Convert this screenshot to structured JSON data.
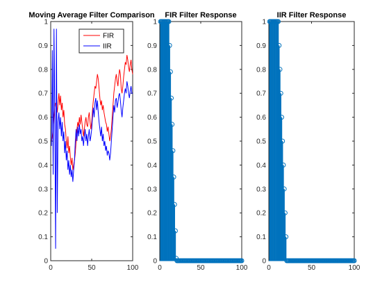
{
  "chart_data": [
    {
      "type": "line",
      "title": "Moving Average Filter Comparison",
      "xlabel": "",
      "ylabel": "",
      "xlim": [
        0,
        100
      ],
      "ylim": [
        0,
        1
      ],
      "xticks": [
        0,
        50,
        100
      ],
      "yticks": [
        0,
        0.1,
        0.2,
        0.3,
        0.4,
        0.5,
        0.6,
        0.7,
        0.8,
        0.9,
        1
      ],
      "grid": false,
      "legend_position": "top-right",
      "series": [
        {
          "name": "FIR",
          "color": "#ff0000",
          "points": [
            [
              1,
              0.5
            ],
            [
              2,
              0.52
            ],
            [
              3,
              0.55
            ],
            [
              4,
              0.6
            ],
            [
              5,
              0.64
            ],
            [
              6,
              0.66
            ],
            [
              7,
              0.65
            ],
            [
              8,
              0.62
            ],
            [
              9,
              0.66
            ],
            [
              10,
              0.7
            ],
            [
              11,
              0.65
            ],
            [
              12,
              0.69
            ],
            [
              13,
              0.63
            ],
            [
              14,
              0.66
            ],
            [
              15,
              0.6
            ],
            [
              16,
              0.63
            ],
            [
              17,
              0.57
            ],
            [
              18,
              0.55
            ],
            [
              19,
              0.5
            ],
            [
              20,
              0.47
            ],
            [
              21,
              0.52
            ],
            [
              22,
              0.45
            ],
            [
              23,
              0.48
            ],
            [
              24,
              0.43
            ],
            [
              25,
              0.4
            ],
            [
              26,
              0.43
            ],
            [
              27,
              0.38
            ],
            [
              28,
              0.4
            ],
            [
              29,
              0.42
            ],
            [
              30,
              0.45
            ],
            [
              31,
              0.5
            ],
            [
              32,
              0.55
            ],
            [
              33,
              0.58
            ],
            [
              34,
              0.56
            ],
            [
              35,
              0.6
            ],
            [
              36,
              0.57
            ],
            [
              37,
              0.61
            ],
            [
              38,
              0.58
            ],
            [
              39,
              0.55
            ],
            [
              40,
              0.52
            ],
            [
              41,
              0.55
            ],
            [
              42,
              0.58
            ],
            [
              43,
              0.6
            ],
            [
              44,
              0.57
            ],
            [
              45,
              0.56
            ],
            [
              46,
              0.6
            ],
            [
              47,
              0.62
            ],
            [
              48,
              0.58
            ],
            [
              49,
              0.55
            ],
            [
              50,
              0.58
            ],
            [
              51,
              0.63
            ],
            [
              52,
              0.67
            ],
            [
              53,
              0.7
            ],
            [
              54,
              0.73
            ],
            [
              55,
              0.72
            ],
            [
              56,
              0.75
            ],
            [
              57,
              0.78
            ],
            [
              58,
              0.76
            ],
            [
              59,
              0.72
            ],
            [
              60,
              0.68
            ],
            [
              61,
              0.65
            ],
            [
              62,
              0.67
            ],
            [
              63,
              0.63
            ],
            [
              64,
              0.65
            ],
            [
              65,
              0.62
            ],
            [
              66,
              0.6
            ],
            [
              67,
              0.58
            ],
            [
              68,
              0.57
            ],
            [
              69,
              0.54
            ],
            [
              70,
              0.56
            ],
            [
              71,
              0.53
            ],
            [
              72,
              0.5
            ],
            [
              73,
              0.52
            ],
            [
              74,
              0.55
            ],
            [
              75,
              0.6
            ],
            [
              76,
              0.65
            ],
            [
              77,
              0.7
            ],
            [
              78,
              0.73
            ],
            [
              79,
              0.76
            ],
            [
              80,
              0.78
            ],
            [
              81,
              0.75
            ],
            [
              82,
              0.73
            ],
            [
              83,
              0.77
            ],
            [
              84,
              0.8
            ],
            [
              85,
              0.78
            ],
            [
              86,
              0.72
            ],
            [
              87,
              0.7
            ],
            [
              88,
              0.73
            ],
            [
              89,
              0.77
            ],
            [
              90,
              0.8
            ],
            [
              91,
              0.83
            ],
            [
              92,
              0.82
            ],
            [
              93,
              0.86
            ],
            [
              94,
              0.84
            ],
            [
              95,
              0.81
            ],
            [
              96,
              0.79
            ],
            [
              97,
              0.82
            ],
            [
              98,
              0.84
            ],
            [
              99,
              0.8
            ],
            [
              100,
              0.78
            ]
          ]
        },
        {
          "name": "IIR",
          "color": "#0000ff",
          "points": [
            [
              1,
              0.48
            ],
            [
              2,
              0.88
            ],
            [
              3,
              0.36
            ],
            [
              4,
              0.97
            ],
            [
              5,
              0.6
            ],
            [
              6,
              0.05
            ],
            [
              7,
              0.97
            ],
            [
              8,
              0.2
            ],
            [
              9,
              0.58
            ],
            [
              10,
              0.62
            ],
            [
              11,
              0.55
            ],
            [
              12,
              0.6
            ],
            [
              13,
              0.52
            ],
            [
              14,
              0.58
            ],
            [
              15,
              0.5
            ],
            [
              16,
              0.54
            ],
            [
              17,
              0.45
            ],
            [
              18,
              0.5
            ],
            [
              19,
              0.42
            ],
            [
              20,
              0.46
            ],
            [
              21,
              0.38
            ],
            [
              22,
              0.42
            ],
            [
              23,
              0.36
            ],
            [
              24,
              0.4
            ],
            [
              25,
              0.35
            ],
            [
              26,
              0.38
            ],
            [
              27,
              0.33
            ],
            [
              28,
              0.38
            ],
            [
              29,
              0.42
            ],
            [
              30,
              0.5
            ],
            [
              31,
              0.55
            ],
            [
              32,
              0.5
            ],
            [
              33,
              0.56
            ],
            [
              34,
              0.52
            ],
            [
              35,
              0.57
            ],
            [
              36,
              0.53
            ],
            [
              37,
              0.55
            ],
            [
              38,
              0.5
            ],
            [
              39,
              0.52
            ],
            [
              40,
              0.48
            ],
            [
              41,
              0.52
            ],
            [
              42,
              0.55
            ],
            [
              43,
              0.5
            ],
            [
              44,
              0.53
            ],
            [
              45,
              0.48
            ],
            [
              46,
              0.52
            ],
            [
              47,
              0.55
            ],
            [
              48,
              0.5
            ],
            [
              49,
              0.52
            ],
            [
              50,
              0.55
            ],
            [
              51,
              0.6
            ],
            [
              52,
              0.64
            ],
            [
              53,
              0.6
            ],
            [
              54,
              0.66
            ],
            [
              55,
              0.68
            ],
            [
              56,
              0.63
            ],
            [
              57,
              0.67
            ],
            [
              58,
              0.62
            ],
            [
              59,
              0.58
            ],
            [
              60,
              0.55
            ],
            [
              61,
              0.52
            ],
            [
              62,
              0.56
            ],
            [
              63,
              0.5
            ],
            [
              64,
              0.53
            ],
            [
              65,
              0.48
            ],
            [
              66,
              0.5
            ],
            [
              67,
              0.46
            ],
            [
              68,
              0.48
            ],
            [
              69,
              0.44
            ],
            [
              70,
              0.46
            ],
            [
              71,
              0.45
            ],
            [
              72,
              0.42
            ],
            [
              73,
              0.45
            ],
            [
              74,
              0.5
            ],
            [
              75,
              0.55
            ],
            [
              76,
              0.6
            ],
            [
              77,
              0.65
            ],
            [
              78,
              0.62
            ],
            [
              79,
              0.67
            ],
            [
              80,
              0.68
            ],
            [
              81,
              0.64
            ],
            [
              82,
              0.66
            ],
            [
              83,
              0.69
            ],
            [
              84,
              0.7
            ],
            [
              85,
              0.67
            ],
            [
              86,
              0.63
            ],
            [
              87,
              0.6
            ],
            [
              88,
              0.64
            ],
            [
              89,
              0.67
            ],
            [
              90,
              0.7
            ],
            [
              91,
              0.72
            ],
            [
              92,
              0.7
            ],
            [
              93,
              0.75
            ],
            [
              94,
              0.73
            ],
            [
              95,
              0.7
            ],
            [
              96,
              0.68
            ],
            [
              97,
              0.71
            ],
            [
              98,
              0.73
            ],
            [
              99,
              0.7
            ],
            [
              100,
              0.7
            ]
          ]
        }
      ]
    },
    {
      "type": "stem",
      "title": "FIR Filter Response",
      "xlabel": "",
      "ylabel": "",
      "xlim": [
        0,
        100
      ],
      "ylim": [
        0,
        1
      ],
      "xticks": [
        0,
        50,
        100
      ],
      "yticks": [
        0,
        0.1,
        0.2,
        0.3,
        0.4,
        0.5,
        0.6,
        0.7,
        0.8,
        0.9,
        1
      ],
      "grid": false,
      "color": "#0072bd",
      "x": [
        1,
        2,
        3,
        4,
        5,
        6,
        7,
        8,
        9,
        10,
        11,
        12,
        13,
        14,
        15,
        16,
        17,
        18,
        19,
        20,
        21,
        22,
        23,
        24,
        25,
        26,
        27,
        28,
        29,
        30,
        31,
        32,
        33,
        34,
        35,
        36,
        37,
        38,
        39,
        40,
        41,
        42,
        43,
        44,
        45,
        46,
        47,
        48,
        49,
        50,
        51,
        52,
        53,
        54,
        55,
        56,
        57,
        58,
        59,
        60,
        61,
        62,
        63,
        64,
        65,
        66,
        67,
        68,
        69,
        70,
        71,
        72,
        73,
        74,
        75,
        76,
        77,
        78,
        79,
        80,
        81,
        82,
        83,
        84,
        85,
        86,
        87,
        88,
        89,
        90,
        91,
        92,
        93,
        94,
        95,
        96,
        97,
        98,
        99,
        100
      ],
      "values": [
        1,
        1,
        1,
        1,
        1,
        1,
        1,
        1,
        1,
        1,
        1,
        0.9,
        0.79,
        0.68,
        0.57,
        0.46,
        0.35,
        0.235,
        0.125,
        0.01,
        0,
        0,
        0,
        0,
        0,
        0,
        0,
        0,
        0,
        0,
        0,
        0,
        0,
        0,
        0,
        0,
        0,
        0,
        0,
        0,
        0,
        0,
        0,
        0,
        0,
        0,
        0,
        0,
        0,
        0,
        0,
        0,
        0,
        0,
        0,
        0,
        0,
        0,
        0,
        0,
        0,
        0,
        0,
        0,
        0,
        0,
        0,
        0,
        0,
        0,
        0,
        0,
        0,
        0,
        0,
        0,
        0,
        0,
        0,
        0,
        0,
        0,
        0,
        0,
        0,
        0,
        0,
        0,
        0,
        0,
        0,
        0,
        0,
        0,
        0,
        0,
        0,
        0,
        0,
        0
      ]
    },
    {
      "type": "stem",
      "title": "IIR Filter Response",
      "xlabel": "",
      "ylabel": "",
      "xlim": [
        0,
        100
      ],
      "ylim": [
        0,
        1
      ],
      "xticks": [
        0,
        50,
        100
      ],
      "yticks": [
        0,
        0.1,
        0.2,
        0.3,
        0.4,
        0.5,
        0.6,
        0.7,
        0.8,
        0.9,
        1
      ],
      "grid": false,
      "color": "#0072bd",
      "x": [
        1,
        2,
        3,
        4,
        5,
        6,
        7,
        8,
        9,
        10,
        11,
        12,
        13,
        14,
        15,
        16,
        17,
        18,
        19,
        20,
        21,
        22,
        23,
        24,
        25,
        26,
        27,
        28,
        29,
        30,
        31,
        32,
        33,
        34,
        35,
        36,
        37,
        38,
        39,
        40,
        41,
        42,
        43,
        44,
        45,
        46,
        47,
        48,
        49,
        50,
        51,
        52,
        53,
        54,
        55,
        56,
        57,
        58,
        59,
        60,
        61,
        62,
        63,
        64,
        65,
        66,
        67,
        68,
        69,
        70,
        71,
        72,
        73,
        74,
        75,
        76,
        77,
        78,
        79,
        80,
        81,
        82,
        83,
        84,
        85,
        86,
        87,
        88,
        89,
        90,
        91,
        92,
        93,
        94,
        95,
        96,
        97,
        98,
        99,
        100
      ],
      "values": [
        1,
        1,
        1,
        1,
        1,
        1,
        1,
        1,
        1,
        1,
        1,
        0.9,
        0.8,
        0.7,
        0.6,
        0.5,
        0.4,
        0.3,
        0.2,
        0.1,
        0,
        0,
        0,
        0,
        0,
        0,
        0,
        0,
        0,
        0,
        0,
        0,
        0,
        0,
        0,
        0,
        0,
        0,
        0,
        0,
        0,
        0,
        0,
        0,
        0,
        0,
        0,
        0,
        0,
        0,
        0,
        0,
        0,
        0,
        0,
        0,
        0,
        0,
        0,
        0,
        0,
        0,
        0,
        0,
        0,
        0,
        0,
        0,
        0,
        0,
        0,
        0,
        0,
        0,
        0,
        0,
        0,
        0,
        0,
        0,
        0,
        0,
        0,
        0,
        0,
        0,
        0,
        0,
        0,
        0,
        0,
        0,
        0,
        0,
        0,
        0,
        0,
        0,
        0,
        0
      ]
    }
  ]
}
